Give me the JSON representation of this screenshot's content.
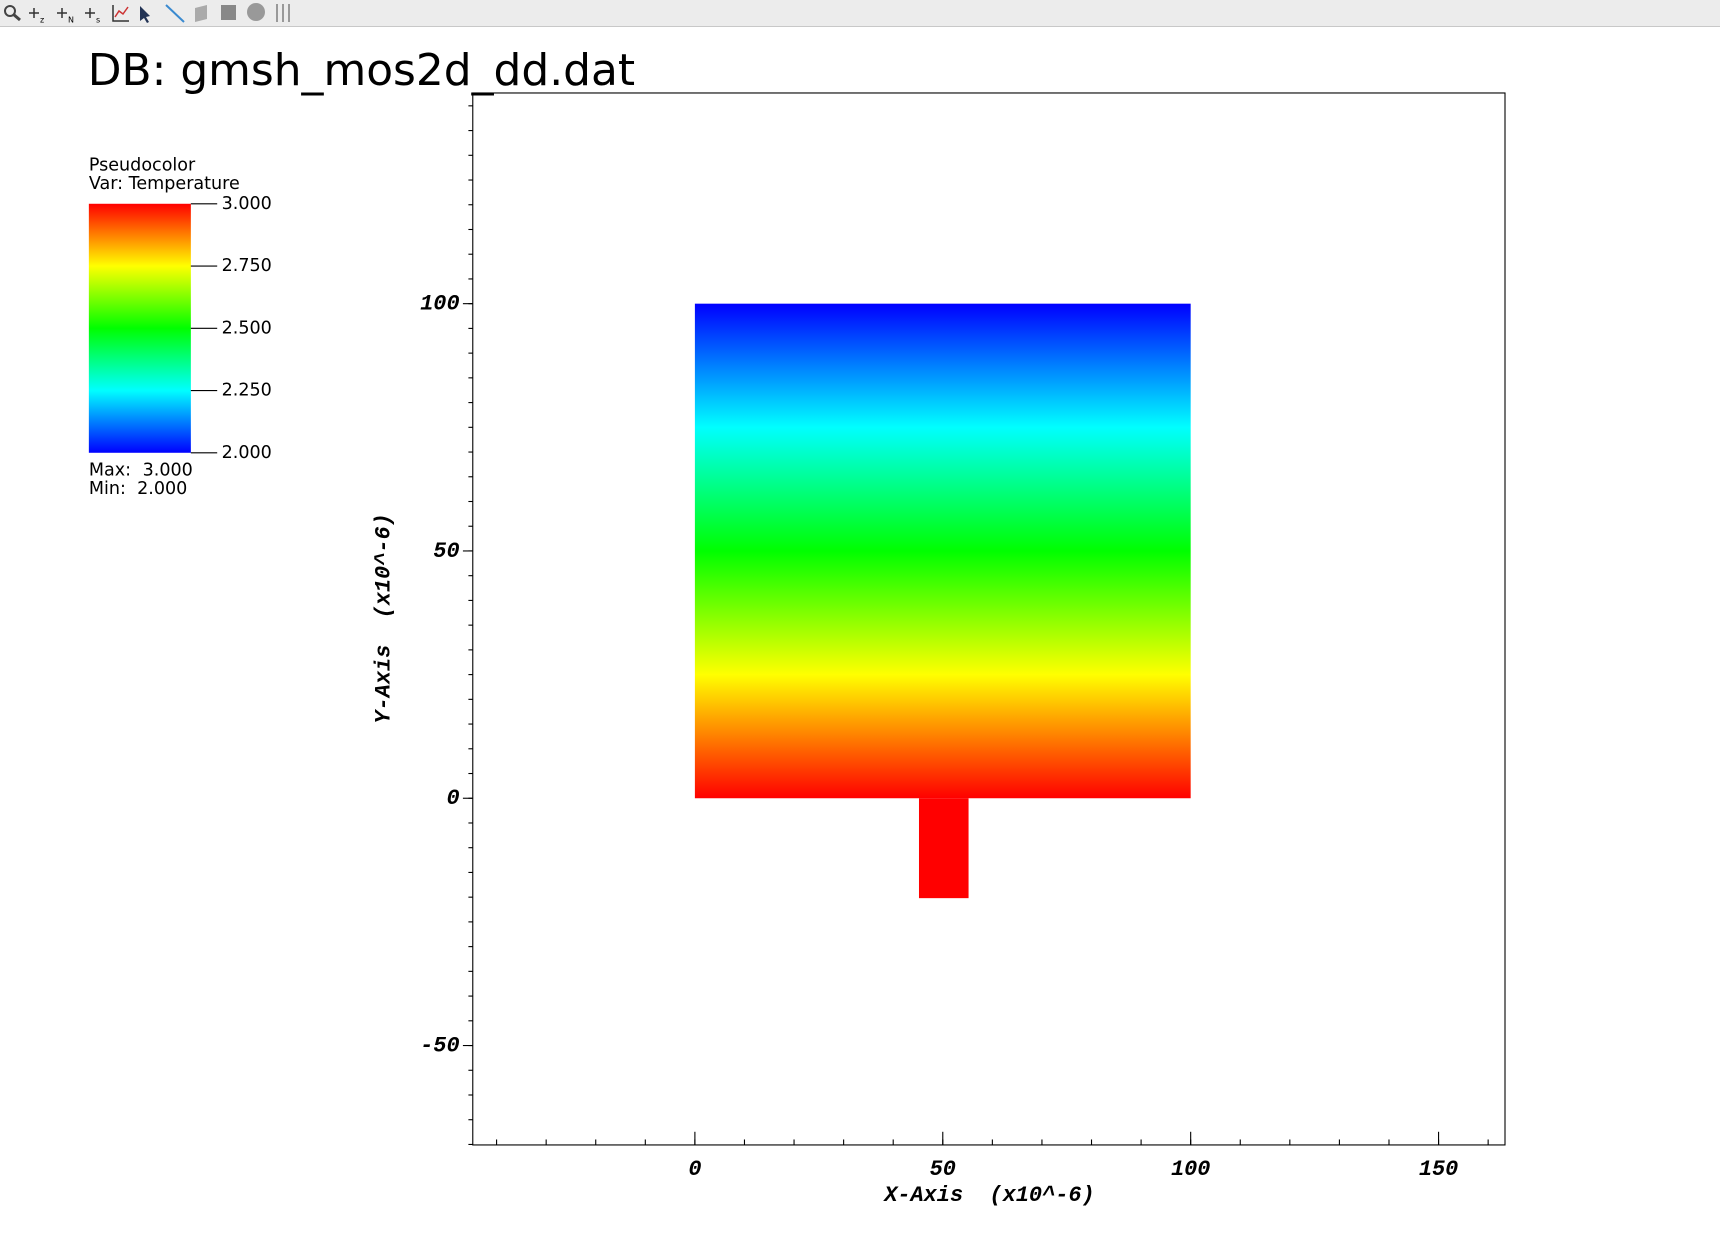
{
  "title": "DB: gmsh_mos2d_dd.dat",
  "legend": {
    "plot": "Pseudocolor",
    "var": "Var: Temperature",
    "colors": [
      "#0000ff",
      "#00ffff",
      "#00ff00",
      "#ffff00",
      "#ff0000"
    ],
    "range": [
      2,
      3
    ],
    "ticks": [
      {
        "value": 3,
        "label": "3.000"
      },
      {
        "value": 2.75,
        "label": "2.750"
      },
      {
        "value": 2.5,
        "label": "2.500"
      },
      {
        "value": 2.25,
        "label": "2.250"
      },
      {
        "value": 2,
        "label": "2.000"
      }
    ],
    "max_text": "Max:",
    "max": {
      "value": 3,
      "label": "3.000"
    },
    "min_text": "Min:",
    "min": {
      "value": 2,
      "label": "2.000"
    }
  },
  "plot": {
    "xlabel": "X-Axis  (x10^-6)",
    "ylabel": "Y-Axis  (x10^-6)",
    "xlim": [
      -44.8,
      163.4
    ],
    "ylim": [
      -70.1,
      142.6
    ],
    "xticks": [
      0,
      50,
      100,
      150
    ],
    "yticks": [
      -50,
      0,
      50,
      100
    ],
    "regions": [
      {
        "x": [
          0,
          100
        ],
        "y": [
          0,
          100
        ],
        "temperature": [
          2,
          3
        ]
      },
      {
        "x": [
          45.2,
          55.2
        ],
        "y": [
          -20.2,
          0
        ],
        "temperature": [
          3,
          3
        ]
      }
    ]
  }
}
